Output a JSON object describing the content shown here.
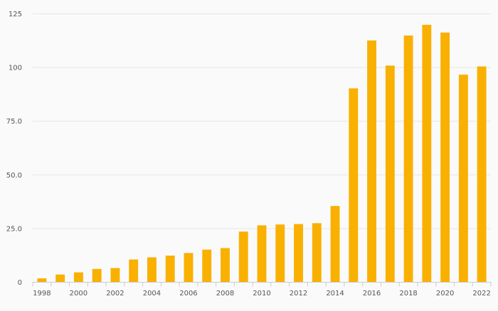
{
  "chart_data": {
    "type": "bar",
    "title": "",
    "xlabel": "",
    "ylabel": "",
    "categories": [
      "1998",
      "1999",
      "2000",
      "2001",
      "2002",
      "2003",
      "2004",
      "2005",
      "2006",
      "2007",
      "2008",
      "2009",
      "2010",
      "2011",
      "2012",
      "2013",
      "2014",
      "2015",
      "2016",
      "2017",
      "2018",
      "2019",
      "2020",
      "2021",
      "2022"
    ],
    "values": [
      1.8,
      3.6,
      4.6,
      6.2,
      6.6,
      10.6,
      11.6,
      12.4,
      13.6,
      15.2,
      15.9,
      23.6,
      26.5,
      26.9,
      27.1,
      27.5,
      35.5,
      90.3,
      112.6,
      100.9,
      114.9,
      119.9,
      116.3,
      96.7,
      100.5
    ],
    "x_tick_labels": [
      "1998",
      "2000",
      "2002",
      "2004",
      "2006",
      "2008",
      "2010",
      "2012",
      "2014",
      "2016",
      "2018",
      "2020",
      "2022"
    ],
    "y_ticks": [
      0,
      25,
      50,
      75,
      100,
      125
    ],
    "y_tick_labels": [
      "0",
      "25.0",
      "50.0",
      "75.0",
      "100",
      "125"
    ],
    "ylim": [
      0,
      125
    ],
    "grid": true,
    "legend": "none",
    "colors": {
      "bar": "#f9b000",
      "grid": "#e6e6e6",
      "axis": "#cccccc",
      "background": "#fafafa"
    }
  }
}
